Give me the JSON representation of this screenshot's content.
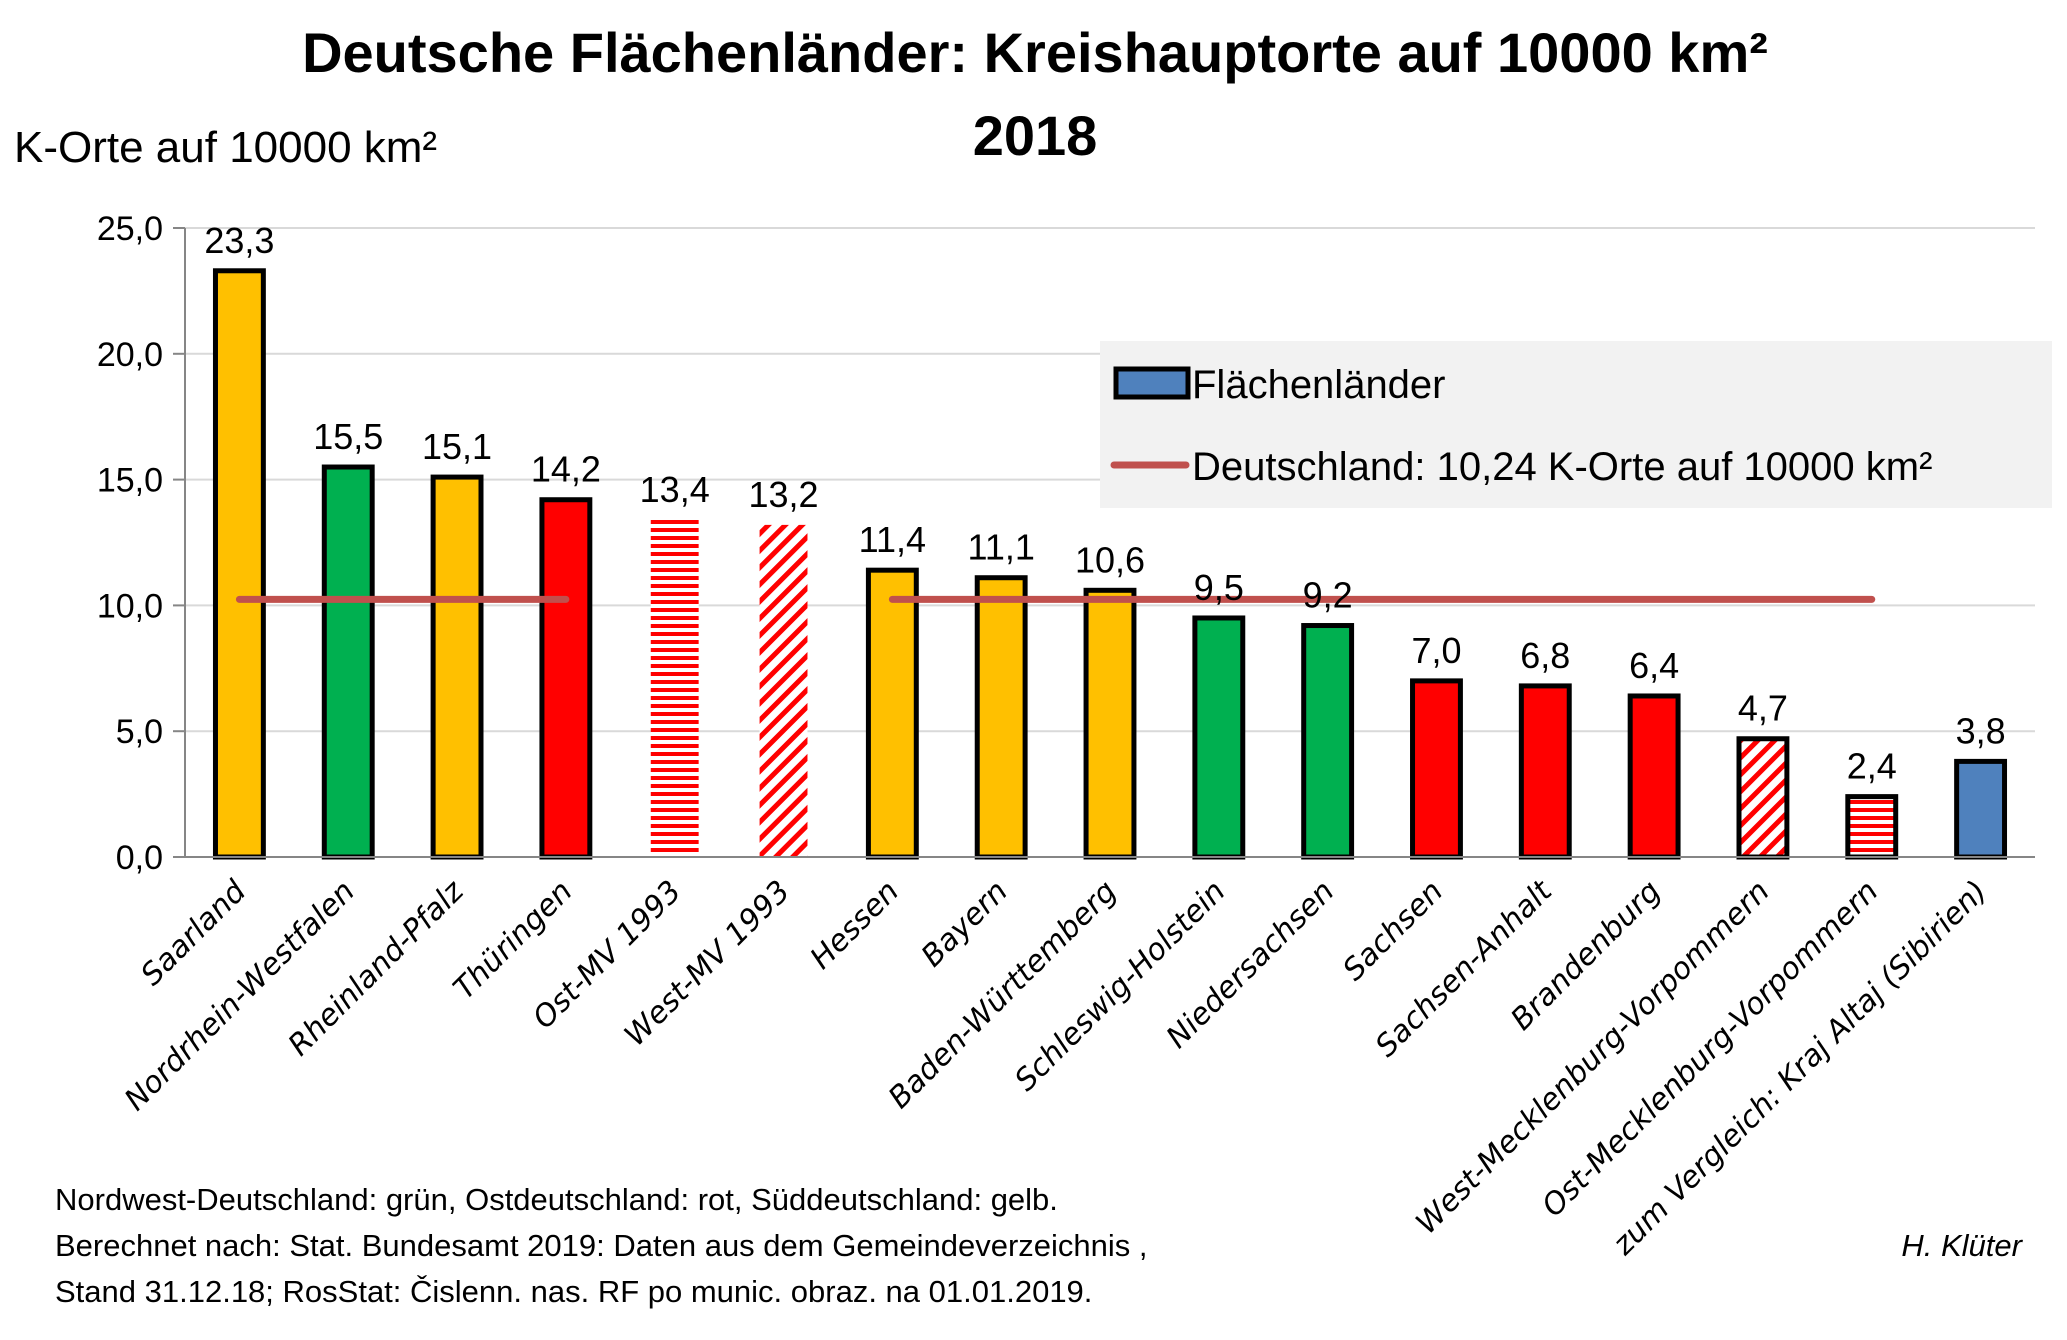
{
  "chart_data": {
    "type": "bar",
    "title": "Deutsche Flächenländer: Kreishauptorte auf 10000 km²",
    "subtitle": "2018",
    "ylabel": "K-Orte auf 10000  km²",
    "xlabel": "",
    "ylim": [
      0,
      25
    ],
    "yticks": [
      "0,0",
      "5,0",
      "10,0",
      "15,0",
      "20,0",
      "25,0"
    ],
    "ytick_values": [
      0,
      5,
      10,
      15,
      20,
      25
    ],
    "grid": true,
    "categories": [
      "Saarland",
      "Nordrhein-Westfalen",
      "Rheinland-Pfalz",
      "Thüringen",
      "Ost-MV 1993",
      "West-MV 1993",
      "Hessen",
      "Bayern",
      "Baden-Württemberg",
      "Schleswig-Holstein",
      "Niedersachsen",
      "Sachsen",
      "Sachsen-Anhalt",
      "Brandenburg",
      "West-Mecklenburg-Vorpommern",
      "Ost-Mecklenburg-Vorpommern",
      "zum Vergleich: Kraj Altaj (Sibirien)"
    ],
    "values": [
      23.3,
      15.5,
      15.1,
      14.2,
      13.4,
      13.2,
      11.4,
      11.1,
      10.6,
      9.5,
      9.2,
      7.0,
      6.8,
      6.4,
      4.7,
      2.4,
      3.8
    ],
    "value_labels": [
      "23,3",
      "15,5",
      "15,1",
      "14,2",
      "13,4",
      "13,2",
      "11,4",
      "11,1",
      "10,6",
      "9,5",
      "9,2",
      "7,0",
      "6,8",
      "6,4",
      "4,7",
      "2,4",
      "3,8"
    ],
    "bar_styles": [
      {
        "fill": "yellow",
        "pattern": "solid",
        "outline": true
      },
      {
        "fill": "green",
        "pattern": "solid",
        "outline": true
      },
      {
        "fill": "yellow",
        "pattern": "solid",
        "outline": true
      },
      {
        "fill": "red",
        "pattern": "solid",
        "outline": true
      },
      {
        "fill": "red",
        "pattern": "horizontal",
        "outline": false
      },
      {
        "fill": "red",
        "pattern": "diagonal",
        "outline": false
      },
      {
        "fill": "yellow",
        "pattern": "solid",
        "outline": true
      },
      {
        "fill": "yellow",
        "pattern": "solid",
        "outline": true
      },
      {
        "fill": "yellow",
        "pattern": "solid",
        "outline": true
      },
      {
        "fill": "green",
        "pattern": "solid",
        "outline": true
      },
      {
        "fill": "green",
        "pattern": "solid",
        "outline": true
      },
      {
        "fill": "red",
        "pattern": "solid",
        "outline": true
      },
      {
        "fill": "red",
        "pattern": "solid",
        "outline": true
      },
      {
        "fill": "red",
        "pattern": "solid",
        "outline": true
      },
      {
        "fill": "red",
        "pattern": "diagonal",
        "outline": true
      },
      {
        "fill": "red",
        "pattern": "horizontal",
        "outline": true
      },
      {
        "fill": "blue",
        "pattern": "solid",
        "outline": true
      }
    ],
    "reference_line": {
      "name": "Deutschland: 10,24 K-Orte auf 10000 km²",
      "value": 10.24,
      "segments": [
        {
          "from_category": 0,
          "to_category": 3
        },
        {
          "from_category": 6,
          "to_category": 15
        }
      ]
    },
    "legend": {
      "placement": "top-right",
      "entries": [
        {
          "label": "Flächenländer",
          "kind": "bar",
          "color": "blue"
        },
        {
          "label": "Deutschland: 10,24 K-Orte auf 10000 km²",
          "kind": "line",
          "color": "line"
        }
      ]
    }
  },
  "colors": {
    "yellow": "#FFC000",
    "green": "#00B050",
    "red": "#FF0000",
    "blue": "#4F81BD",
    "line": "#C0504D",
    "grid": "#D9D9D9",
    "axis": "#868686",
    "legend_bg": "#F2F2F2"
  },
  "notes": [
    "Nordwest-Deutschland: grün, Ostdeutschland: rot, Süddeutschland: gelb.",
    "Berechnet nach: Stat. Bundesamt 2019: Daten aus dem Gemeindeverzeichnis ,",
    "Stand 31.12.18; RosStat:  Čislenn. nas. RF po munic. obraz. na 01.01.2019."
  ],
  "author": "H. Klüter"
}
